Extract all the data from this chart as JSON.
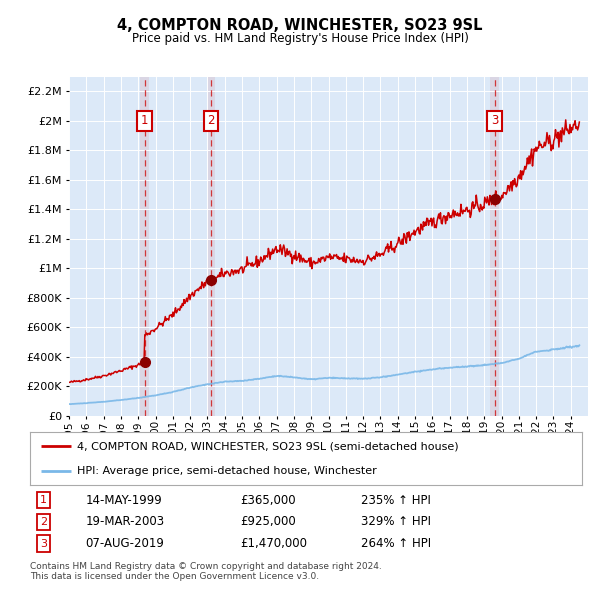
{
  "title": "4, COMPTON ROAD, WINCHESTER, SO23 9SL",
  "subtitle": "Price paid vs. HM Land Registry's House Price Index (HPI)",
  "legend_property": "4, COMPTON ROAD, WINCHESTER, SO23 9SL (semi-detached house)",
  "legend_hpi": "HPI: Average price, semi-detached house, Winchester",
  "footer1": "Contains HM Land Registry data © Crown copyright and database right 2024.",
  "footer2": "This data is licensed under the Open Government Licence v3.0.",
  "transactions": [
    {
      "label": "1",
      "date": "14-MAY-1999",
      "price": 365000,
      "hpi_pct": "235% ↑ HPI",
      "year": 1999.37
    },
    {
      "label": "2",
      "date": "19-MAR-2003",
      "price": 925000,
      "hpi_pct": "329% ↑ HPI",
      "year": 2003.21
    },
    {
      "label": "3",
      "date": "07-AUG-2019",
      "price": 1470000,
      "hpi_pct": "264% ↑ HPI",
      "year": 2019.6
    }
  ],
  "ylim": [
    0,
    2300000
  ],
  "yticks": [
    0,
    200000,
    400000,
    600000,
    800000,
    1000000,
    1200000,
    1400000,
    1600000,
    1800000,
    2000000,
    2200000
  ],
  "background_color": "#ffffff",
  "plot_bg_color": "#dce9f8",
  "grid_color": "#ffffff",
  "hpi_color": "#7ab8e8",
  "property_color": "#cc0000",
  "vline_color": "#cc0000",
  "transaction_box_color": "#cc0000",
  "xmin": 1995.0,
  "xmax": 2025.0
}
